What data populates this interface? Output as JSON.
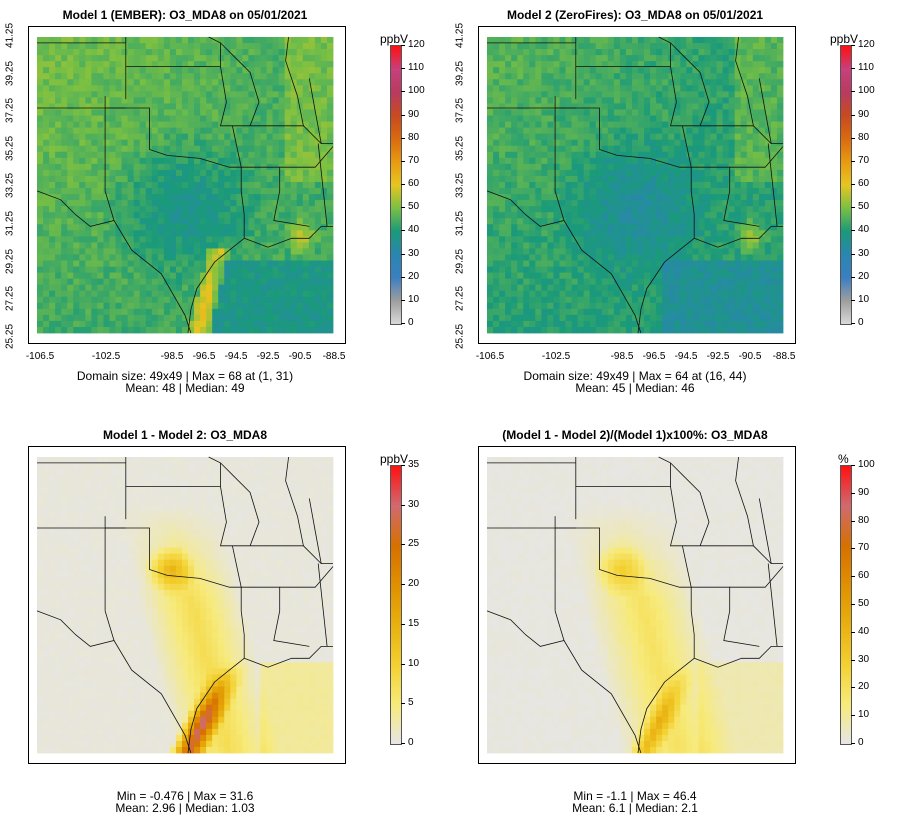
{
  "panels": [
    {
      "title": "Model 1 (EMBER): O3_MDA8 on 05/01/2021",
      "unit": "ppbV",
      "colorbar": {
        "min": 0,
        "max": 120,
        "ticks": [
          "120",
          "110",
          "100",
          "90",
          "80",
          "70",
          "60",
          "50",
          "40",
          "30",
          "20",
          "10",
          "0"
        ]
      },
      "x_ticks": [
        "-106.5",
        "-102.5",
        "-98.5",
        "-96.5",
        "-94.5",
        "-92.5",
        "-90.5",
        "-88.5"
      ],
      "y_ticks": [
        "41.25",
        "39.25",
        "37.25",
        "35.25",
        "33.25",
        "31.25",
        "29.25",
        "27.25",
        "25.25"
      ],
      "info_line1": "Domain size: 49x49 | Max = 68 at (1, 31)",
      "info_line2": "Mean: 48 |  Median: 49",
      "field": "model1"
    },
    {
      "title": "Model 2 (ZeroFires): O3_MDA8 on 05/01/2021",
      "unit": "ppbV",
      "colorbar": {
        "min": 0,
        "max": 120,
        "ticks": [
          "120",
          "110",
          "100",
          "90",
          "80",
          "70",
          "60",
          "50",
          "40",
          "30",
          "20",
          "10",
          "0"
        ]
      },
      "x_ticks": [
        "-106.5",
        "-102.5",
        "-98.5",
        "-96.5",
        "-94.5",
        "-92.5",
        "-90.5",
        "-88.5"
      ],
      "y_ticks": [
        "41.25",
        "39.25",
        "37.25",
        "35.25",
        "33.25",
        "31.25",
        "29.25",
        "27.25",
        "25.25"
      ],
      "info_line1": "Domain size: 49x49 | Max = 64 at (16, 44)",
      "info_line2": "Mean: 45 |  Median: 46",
      "field": "model2"
    },
    {
      "title": "Model 1 - Model 2: O3_MDA8",
      "unit": "ppbV",
      "colorbar": {
        "min": 0,
        "max": 35,
        "ticks": [
          "35",
          "30",
          "25",
          "20",
          "15",
          "10",
          "5",
          "0"
        ]
      },
      "info_line1": "Min = -0.476 | Max = 31.6",
      "info_line2": "Mean: 2.96 |  Median: 1.03",
      "field": "diff"
    },
    {
      "title": "(Model 1 - Model 2)/(Model 1)x100%: O3_MDA8",
      "unit": "%",
      "colorbar": {
        "min": 0,
        "max": 100,
        "ticks": [
          "100",
          "90",
          "80",
          "70",
          "60",
          "50",
          "40",
          "30",
          "20",
          "10",
          "0"
        ]
      },
      "info_line1": "Min = -1.1 | Max = 46.4",
      "info_line2": "Mean: 6.1 |  Median: 2.1",
      "field": "pct"
    }
  ],
  "colors": {
    "ozone_scale": [
      "#d9d9d9",
      "#9e9e9e",
      "#3a7fc2",
      "#2a86b0",
      "#1a9a7a",
      "#7ac043",
      "#e8c520",
      "#e89a10",
      "#d96a10",
      "#c84a20",
      "#b83a60",
      "#c8407c",
      "#ff1010"
    ],
    "diff_scale": [
      "#e6e6e6",
      "#f7ea7a",
      "#f3d030",
      "#e8b010",
      "#e09000",
      "#d67000",
      "#d06a70",
      "#ff1010"
    ]
  }
}
